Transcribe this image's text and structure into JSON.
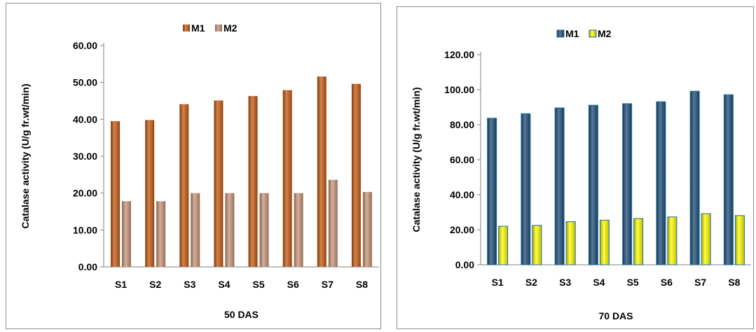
{
  "chart_data": [
    {
      "type": "bar",
      "categories": [
        "S1",
        "S2",
        "S3",
        "S4",
        "S5",
        "S6",
        "S7",
        "S8"
      ],
      "series": [
        {
          "name": "M1",
          "values": [
            39.5,
            39.8,
            44.1,
            45.1,
            46.3,
            47.9,
            51.6,
            49.6
          ],
          "color": "#c55a11"
        },
        {
          "name": "M2",
          "values": [
            17.8,
            17.8,
            20.0,
            20.0,
            20.0,
            20.0,
            23.6,
            20.3
          ],
          "color": "#c8967a"
        }
      ],
      "title": "",
      "xlabel": "50 DAS",
      "ylabel": "Catalase activity (U/g fr.wt/min)",
      "ylim": [
        0,
        60
      ],
      "yticks": [
        "0.00",
        "10.00",
        "20.00",
        "30.00",
        "40.00",
        "50.00",
        "60.00"
      ],
      "legend": "top",
      "grid": false
    },
    {
      "type": "bar",
      "categories": [
        "S1",
        "S2",
        "S3",
        "S4",
        "S5",
        "S6",
        "S7",
        "S8"
      ],
      "series": [
        {
          "name": "M1",
          "values": [
            83.7,
            86.3,
            89.6,
            91.1,
            92.0,
            93.1,
            99.1,
            97.1
          ],
          "color": "#1f4e79"
        },
        {
          "name": "M2",
          "values": [
            22.0,
            22.5,
            24.6,
            25.5,
            26.4,
            27.3,
            29.2,
            28.1
          ],
          "color": "#ffff00"
        }
      ],
      "title": "",
      "xlabel": "70 DAS",
      "ylabel": "Catalase activity (U/g fr.wt/min)",
      "ylim": [
        0,
        120
      ],
      "yticks": [
        "0.00",
        "20.00",
        "40.00",
        "60.00",
        "80.00",
        "100.00",
        "120.00"
      ],
      "legend": "top",
      "grid": false
    }
  ]
}
